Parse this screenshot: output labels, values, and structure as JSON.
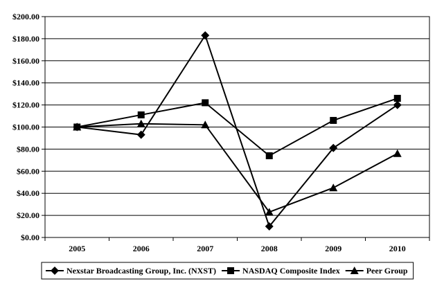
{
  "chart_data": {
    "type": "line",
    "categories": [
      "2005",
      "2006",
      "2007",
      "2008",
      "2009",
      "2010"
    ],
    "ylim": [
      0,
      200
    ],
    "ytick_step": 20,
    "ytick_labels": [
      "$0.00",
      "$20.00",
      "$40.00",
      "$60.00",
      "$80.00",
      "$100.00",
      "$120.00",
      "$140.00",
      "$160.00",
      "$180.00",
      "$200.00"
    ],
    "grid": "horizontal",
    "legend_position": "bottom",
    "series": [
      {
        "name": "Nexstar Broadcasting Group, Inc. (NXST)",
        "marker": "diamond",
        "values": [
          100,
          93,
          183,
          10,
          81,
          120
        ]
      },
      {
        "name": "NASDAQ Composite Index",
        "marker": "square",
        "values": [
          100,
          111,
          122,
          74,
          106,
          126
        ]
      },
      {
        "name": "Peer Group",
        "marker": "triangle",
        "values": [
          100,
          103,
          102,
          23,
          45,
          76
        ]
      }
    ],
    "colors": {
      "line": "#000000",
      "grid": "#000000",
      "background": "#ffffff"
    }
  }
}
